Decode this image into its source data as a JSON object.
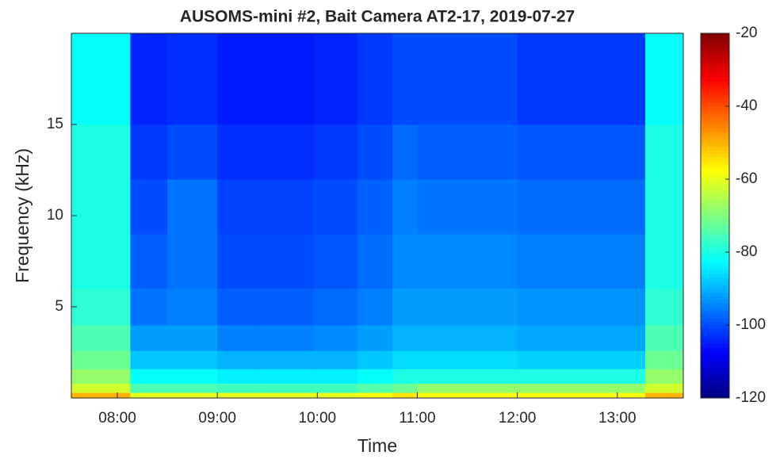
{
  "chart_data": {
    "type": "heatmap",
    "title": "AUSOMS-mini #2, Bait Camera AT2-17, 2019-07-27",
    "x_label": "Time",
    "y_label": "Frequency (kHz)",
    "x": [
      7.54,
      8.13,
      8.5,
      9.0,
      9.4,
      9.97,
      10.4,
      10.75,
      11.0,
      12.0,
      13.28,
      13.66
    ],
    "y": [
      0,
      0.3,
      0.8,
      1.6,
      2.6,
      4,
      6,
      9,
      12,
      15,
      20
    ],
    "values": [
      [
        -50,
        -60,
        -60,
        -60,
        -60,
        -60,
        -58,
        -55,
        -58,
        -58,
        -50
      ],
      [
        -62,
        -75,
        -75,
        -76,
        -76,
        -76,
        -74,
        -72,
        -68,
        -68,
        -62
      ],
      [
        -68,
        -82,
        -82,
        -84,
        -84,
        -84,
        -82,
        -80,
        -80,
        -80,
        -68
      ],
      [
        -72,
        -88,
        -88,
        -90,
        -90,
        -90,
        -88,
        -86,
        -86,
        -87,
        -72
      ],
      [
        -75,
        -92,
        -92,
        -95,
        -95,
        -94,
        -92,
        -90,
        -90,
        -91,
        -75
      ],
      [
        -78,
        -96,
        -95,
        -98,
        -98,
        -97,
        -95,
        -92,
        -92,
        -93,
        -78
      ],
      [
        -80,
        -98,
        -96,
        -100,
        -100,
        -99,
        -97,
        -94,
        -94,
        -95,
        -80
      ],
      [
        -80,
        -100,
        -96,
        -101,
        -101,
        -100,
        -98,
        -95,
        -96,
        -97,
        -80
      ],
      [
        -80,
        -102,
        -100,
        -103,
        -103,
        -102,
        -100,
        -97,
        -98,
        -99,
        -80
      ],
      [
        -82,
        -104,
        -103,
        -105,
        -105,
        -104,
        -102,
        -100,
        -100,
        -102,
        -82
      ]
    ],
    "xlim": [
      7.54,
      13.66
    ],
    "xticks": [
      {
        "value": 8,
        "label": "08:00"
      },
      {
        "value": 9,
        "label": "09:00"
      },
      {
        "value": 10,
        "label": "10:00"
      },
      {
        "value": 11,
        "label": "11:00"
      },
      {
        "value": 12,
        "label": "12:00"
      },
      {
        "value": 13,
        "label": "13:00"
      }
    ],
    "ylim": [
      0,
      20
    ],
    "yticks": [
      5,
      10,
      15
    ],
    "colormap": "jet",
    "zlim": [
      -120,
      -20
    ],
    "zticks": [
      -120,
      -100,
      -80,
      -60,
      -40,
      -20
    ]
  }
}
